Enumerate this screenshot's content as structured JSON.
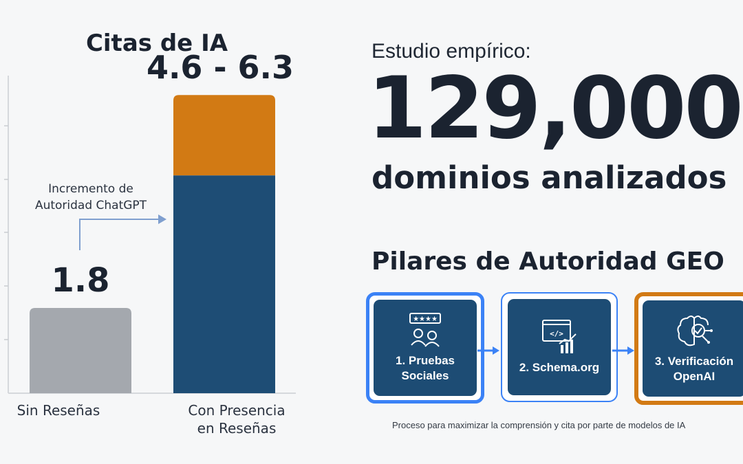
{
  "chart_data": {
    "type": "bar",
    "title": "Citas de IA",
    "categories": [
      "Sin Reseñas",
      "Con Presencia\nen Reseñas"
    ],
    "values": [
      1.8,
      6.3
    ],
    "stacked_segment": {
      "category_index": 1,
      "from": 4.6,
      "to": 6.3
    },
    "data_labels": [
      "1.8",
      "4.6 - 6.3"
    ],
    "annotation": "Incremento de\nAutoridad ChatGPT",
    "ylim": [
      0,
      7
    ],
    "colors": {
      "bar_1": "#a4a8ae",
      "bar_2": "#1e4d75",
      "range": "#d27a14",
      "arrow": "#7f9fcf"
    }
  },
  "study": {
    "label": "Estudio empírico:",
    "number": "129,000",
    "caption": "dominios analizados"
  },
  "pillars": {
    "title": "Pilares de Autoridad GEO",
    "steps": [
      {
        "label": "1. Pruebas\nSociales",
        "icon": "reviews-icon"
      },
      {
        "label": "2. Schema.org",
        "icon": "code-chart-icon"
      },
      {
        "label": "3. Verificación\nOpenAI",
        "icon": "ai-brain-icon"
      }
    ],
    "footnote": "Proceso para maximizar la comprensión y cita por parte de modelos de IA"
  }
}
